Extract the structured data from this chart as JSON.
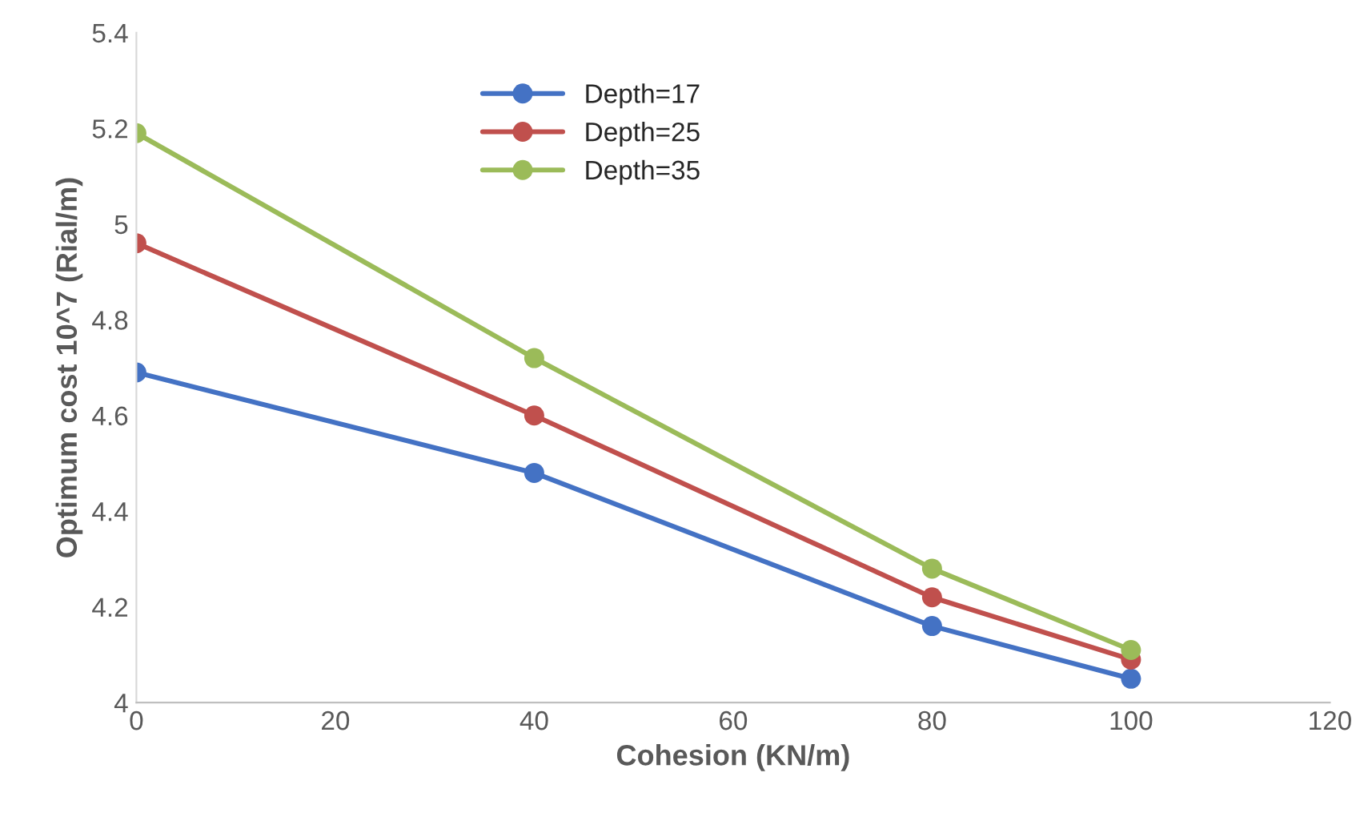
{
  "chart_data": {
    "type": "line",
    "xlabel": "Cohesion (KN/m)",
    "ylabel": "Optimum cost 10^7 (Rial/m)",
    "x": [
      0,
      40,
      80,
      100
    ],
    "series": [
      {
        "name": "Depth=17",
        "color": "#4472c4",
        "values": [
          4.69,
          4.48,
          4.16,
          4.05
        ]
      },
      {
        "name": "Depth=25",
        "color": "#c0504d",
        "values": [
          4.96,
          4.6,
          4.22,
          4.09
        ]
      },
      {
        "name": "Depth=35",
        "color": "#9bbb59",
        "values": [
          5.19,
          4.72,
          4.28,
          4.11
        ]
      }
    ],
    "xlim": [
      0,
      120
    ],
    "xticks": [
      0,
      20,
      40,
      60,
      80,
      100,
      120
    ],
    "ylim": [
      4,
      5.4
    ],
    "yticks": [
      4,
      {
        "value": 4.2,
        "label": "4.2"
      },
      {
        "value": 4.4,
        "label": "4.4"
      },
      {
        "value": 4.6,
        "label": "4.6"
      },
      {
        "value": 4.8,
        "label": "4.8"
      },
      5,
      {
        "value": 5.2,
        "label": "5.2"
      },
      {
        "value": 5.4,
        "label": "5.4"
      }
    ],
    "grid": false,
    "legend": "top left",
    "marker": "circle",
    "line_style": "solid"
  }
}
